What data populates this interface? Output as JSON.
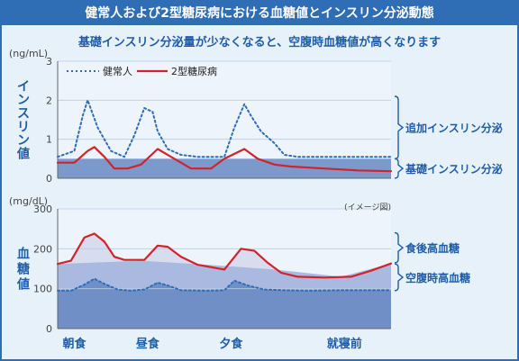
{
  "header": {
    "title": "健常人および2型糖尿病における血糖値とインスリン分泌動態",
    "subtitle": "基礎インスリン分泌量が少なくなると、空腹時血糖値が高くなります"
  },
  "colors": {
    "banner": "#2f6db5",
    "background": "#e6f1fa",
    "healthy_line": "#2f6db5",
    "diabetes_line": "#d2232a",
    "basal_fill": "#6f8fc6",
    "fasting_fill": "#a9b9e0",
    "postprandial_fill": "#d7dcef",
    "brace": "#1f5ca8"
  },
  "chart_data": [
    {
      "type": "line",
      "ylabel": "インスリン値",
      "unit": "(ng/mL)",
      "ylim": [
        0,
        3
      ],
      "yticks": [
        "0",
        "1",
        "2",
        "3"
      ],
      "grid": true,
      "legend_position": "top-left",
      "series": [
        {
          "name": "健常人",
          "style": "dotted",
          "color": "#2f6db5",
          "x": [
            0,
            0.05,
            0.075,
            0.09,
            0.12,
            0.16,
            0.2,
            0.23,
            0.26,
            0.285,
            0.3,
            0.33,
            0.37,
            0.42,
            0.5,
            0.53,
            0.56,
            0.58,
            0.61,
            0.65,
            0.68,
            0.72,
            0.8,
            0.9,
            1.0
          ],
          "values": [
            0.55,
            0.7,
            1.6,
            2.0,
            1.3,
            0.7,
            0.55,
            1.1,
            1.8,
            1.7,
            1.2,
            0.75,
            0.6,
            0.55,
            0.55,
            1.3,
            1.9,
            1.6,
            1.2,
            0.9,
            0.6,
            0.55,
            0.55,
            0.55,
            0.55
          ]
        },
        {
          "name": "2型糖尿病",
          "style": "solid",
          "color": "#d2232a",
          "x": [
            0,
            0.05,
            0.09,
            0.11,
            0.14,
            0.17,
            0.21,
            0.25,
            0.3,
            0.34,
            0.4,
            0.46,
            0.5,
            0.56,
            0.6,
            0.65,
            0.7,
            0.8,
            0.9,
            1.0
          ],
          "values": [
            0.4,
            0.4,
            0.7,
            0.8,
            0.55,
            0.25,
            0.25,
            0.35,
            0.75,
            0.55,
            0.25,
            0.25,
            0.5,
            0.75,
            0.5,
            0.35,
            0.3,
            0.25,
            0.2,
            0.18
          ]
        }
      ],
      "bands": [
        {
          "label": "追加インスリン分泌",
          "from": 0.5,
          "to": 2.1
        },
        {
          "label": "基礎インスリン分泌",
          "from": 0,
          "to": 0.5
        }
      ],
      "basal_area": {
        "level": 0.5
      }
    },
    {
      "type": "area",
      "ylabel": "血糖値",
      "unit": "(mg/dL)",
      "ylim": [
        0,
        300
      ],
      "yticks": [
        "0",
        "100",
        "200",
        "300"
      ],
      "grid": true,
      "note": "(イメージ図)",
      "x_categories": [
        "朝食",
        "昼食",
        "夕食",
        "就寝前"
      ],
      "series": [
        {
          "name": "健常人",
          "style": "dotted",
          "color": "#2f6db5",
          "x": [
            0,
            0.04,
            0.08,
            0.11,
            0.14,
            0.18,
            0.22,
            0.26,
            0.3,
            0.33,
            0.37,
            0.45,
            0.5,
            0.53,
            0.57,
            0.62,
            0.68,
            0.75,
            0.85,
            1.0
          ],
          "values": [
            95,
            95,
            110,
            125,
            112,
            98,
            95,
            98,
            115,
            108,
            96,
            95,
            96,
            120,
            108,
            98,
            96,
            95,
            96,
            96
          ]
        },
        {
          "name": "2型糖尿病",
          "style": "solid",
          "color": "#d2232a",
          "x": [
            0,
            0.04,
            0.08,
            0.11,
            0.14,
            0.17,
            0.2,
            0.23,
            0.26,
            0.3,
            0.33,
            0.37,
            0.42,
            0.5,
            0.55,
            0.59,
            0.63,
            0.67,
            0.72,
            0.8,
            0.88,
            0.94,
            1.0
          ],
          "values": [
            162,
            170,
            228,
            238,
            218,
            180,
            172,
            172,
            172,
            208,
            205,
            180,
            160,
            148,
            200,
            195,
            165,
            140,
            130,
            128,
            130,
            145,
            163
          ]
        }
      ],
      "fasting_baseline": {
        "x": [
          0,
          0.25,
          0.45,
          0.65,
          0.85,
          1.0
        ],
        "values": [
          162,
          170,
          160,
          148,
          130,
          163
        ]
      },
      "bands": [
        {
          "label": "食後高血糖",
          "from": 165,
          "to": 240
        },
        {
          "label": "空腹時高血糖",
          "from": 95,
          "to": 162
        }
      ]
    }
  ],
  "legend": {
    "healthy": "健常人",
    "diabetes": "2型糖尿病"
  }
}
